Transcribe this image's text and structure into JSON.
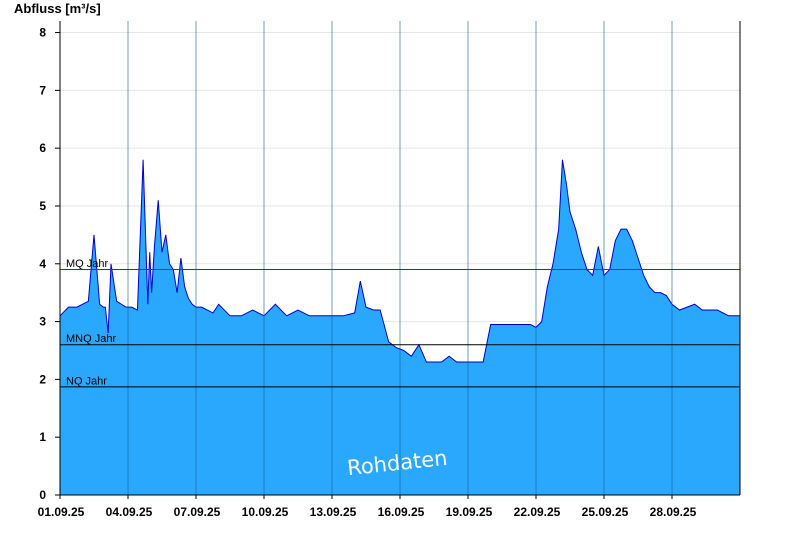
{
  "chart_data": {
    "type": "area",
    "ylabel": "Abfluss [m³/s]",
    "ylim": [
      0,
      8.2
    ],
    "y_ticks": [
      "0",
      "1",
      "2",
      "3",
      "4",
      "5",
      "6",
      "7",
      "8"
    ],
    "x_range": [
      "2025-09-01",
      "2025-09-30"
    ],
    "x_ticks": [
      "01.09.25",
      "04.09.25",
      "07.09.25",
      "10.09.25",
      "13.09.25",
      "16.09.25",
      "19.09.25",
      "22.09.25",
      "25.09.25",
      "28.09.25"
    ],
    "grid": true,
    "fill_color": "#29a8fe",
    "line_color": "#0000cc",
    "series": [
      {
        "x": [
          "2025-09-01",
          "2025-09-01 09:00",
          "2025-09-01 18:00",
          "2025-09-02 06:00",
          "2025-09-02 12:00",
          "2025-09-02 18:00",
          "2025-09-02 22:00",
          "2025-09-03 00:00",
          "2025-09-03 03:00",
          "2025-09-03 06:00",
          "2025-09-03 12:00",
          "2025-09-03 22:00",
          "2025-09-04 04:00",
          "2025-09-04 10:00",
          "2025-09-04 16:00",
          "2025-09-04 21:00",
          "2025-09-04 23:00",
          "2025-09-05 01:00",
          "2025-09-05 04:00",
          "2025-09-05 08:00",
          "2025-09-05 12:00",
          "2025-09-05 16:00",
          "2025-09-05 20:00",
          "2025-09-06 00:00",
          "2025-09-06 04:00",
          "2025-09-06 08:00",
          "2025-09-06 12:00",
          "2025-09-06 16:00",
          "2025-09-06 20:00",
          "2025-09-07 00:00",
          "2025-09-07 06:00",
          "2025-09-07 12:00",
          "2025-09-07 18:00",
          "2025-09-08 00:00",
          "2025-09-08 12:00",
          "2025-09-09 00:00",
          "2025-09-09 12:00",
          "2025-09-10 00:00",
          "2025-09-10 12:00",
          "2025-09-11 00:00",
          "2025-09-11 12:00",
          "2025-09-12 00:00",
          "2025-09-12 12:00",
          "2025-09-13 00:00",
          "2025-09-13 12:00",
          "2025-09-14 00:00",
          "2025-09-14 06:00",
          "2025-09-14 12:00",
          "2025-09-14 20:00",
          "2025-09-15 03:00",
          "2025-09-15 12:00",
          "2025-09-15 20:00",
          "2025-09-16 04:00",
          "2025-09-16 12:00",
          "2025-09-16 20:00",
          "2025-09-17 04:00",
          "2025-09-17 12:00",
          "2025-09-17 20:00",
          "2025-09-18 04:00",
          "2025-09-18 12:00",
          "2025-09-18 20:00",
          "2025-09-19 04:00",
          "2025-09-19 16:00",
          "2025-09-20 00:00",
          "2025-09-20 12:00",
          "2025-09-21 00:00",
          "2025-09-21 12:00",
          "2025-09-21 18:00",
          "2025-09-22 00:00",
          "2025-09-22 06:00",
          "2025-09-22 12:00",
          "2025-09-22 18:00",
          "2025-09-23 00:00",
          "2025-09-23 04:00",
          "2025-09-23 08:00",
          "2025-09-23 12:00",
          "2025-09-23 18:00",
          "2025-09-24 00:00",
          "2025-09-24 06:00",
          "2025-09-24 12:00",
          "2025-09-24 18:00",
          "2025-09-25 00:00",
          "2025-09-25 06:00",
          "2025-09-25 12:00",
          "2025-09-25 18:00",
          "2025-09-26 00:00",
          "2025-09-26 06:00",
          "2025-09-26 12:00",
          "2025-09-26 18:00",
          "2025-09-27 00:00",
          "2025-09-27 06:00",
          "2025-09-27 12:00",
          "2025-09-27 18:00",
          "2025-09-28 00:00",
          "2025-09-28 08:00",
          "2025-09-28 16:00",
          "2025-09-29 00:00",
          "2025-09-29 08:00",
          "2025-09-29 16:00",
          "2025-09-30 00:00",
          "2025-09-30 12:00",
          "2025-10-01"
        ],
        "y": [
          3.1,
          3.25,
          3.25,
          3.35,
          4.5,
          3.3,
          3.25,
          3.25,
          2.8,
          4.0,
          3.35,
          3.25,
          3.25,
          3.2,
          5.8,
          3.3,
          4.2,
          3.5,
          4.3,
          5.1,
          4.2,
          4.5,
          4.0,
          3.9,
          3.5,
          4.1,
          3.6,
          3.4,
          3.3,
          3.25,
          3.25,
          3.2,
          3.15,
          3.3,
          3.1,
          3.1,
          3.2,
          3.1,
          3.3,
          3.1,
          3.2,
          3.1,
          3.1,
          3.1,
          3.1,
          3.15,
          3.7,
          3.25,
          3.2,
          3.2,
          2.65,
          2.55,
          2.5,
          2.4,
          2.6,
          2.3,
          2.3,
          2.3,
          2.4,
          2.3,
          2.3,
          2.3,
          2.3,
          2.95,
          2.95,
          2.95,
          2.95,
          2.95,
          2.9,
          3.0,
          3.6,
          4.0,
          4.6,
          5.8,
          5.4,
          4.9,
          4.6,
          4.2,
          3.9,
          3.8,
          4.3,
          3.8,
          3.9,
          4.4,
          4.6,
          4.6,
          4.4,
          4.1,
          3.8,
          3.6,
          3.5,
          3.5,
          3.45,
          3.3,
          3.2,
          3.25,
          3.3,
          3.2,
          3.2,
          3.2,
          3.1,
          3.1
        ]
      }
    ],
    "reference_lines": [
      {
        "label": "MQ Jahr",
        "value": 3.9,
        "color": "#006600"
      },
      {
        "label": "MNQ Jahr",
        "value": 2.6,
        "color": "#000000"
      },
      {
        "label": "NQ Jahr",
        "value": 1.87,
        "color": "#000000"
      }
    ],
    "watermark": "Rohdaten"
  }
}
